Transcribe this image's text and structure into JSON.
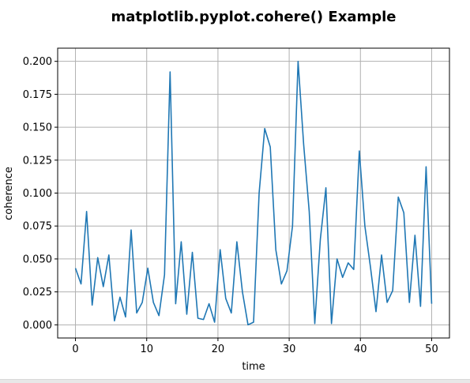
{
  "chart_data": {
    "type": "line",
    "title": "matplotlib.pyplot.cohere() Example",
    "xlabel": "time",
    "ylabel": "coherence",
    "xlim": [
      -2.5,
      52.5
    ],
    "ylim": [
      -0.01,
      0.21
    ],
    "xticks": [
      0,
      10,
      20,
      30,
      40,
      50
    ],
    "yticks": [
      0.0,
      0.025,
      0.05,
      0.075,
      0.1,
      0.125,
      0.15,
      0.175,
      0.2
    ],
    "xtick_labels": [
      "0",
      "10",
      "20",
      "30",
      "40",
      "50"
    ],
    "ytick_labels": [
      "0.000",
      "0.025",
      "0.050",
      "0.075",
      "0.100",
      "0.125",
      "0.150",
      "0.175",
      "0.200"
    ],
    "grid": true,
    "series": [
      {
        "color": "#1f77b4",
        "x": [
          0,
          0.781,
          1.563,
          2.344,
          3.125,
          3.906,
          4.688,
          5.469,
          6.25,
          7.031,
          7.813,
          8.594,
          9.375,
          10.156,
          10.938,
          11.719,
          12.5,
          13.281,
          14.063,
          14.844,
          15.625,
          16.406,
          17.188,
          17.969,
          18.75,
          19.531,
          20.313,
          21.094,
          21.875,
          22.656,
          23.438,
          24.219,
          25.0,
          25.781,
          26.563,
          27.344,
          28.125,
          28.906,
          29.688,
          30.469,
          31.25,
          32.031,
          32.813,
          33.594,
          34.375,
          35.156,
          35.938,
          36.719,
          37.5,
          38.281,
          39.063,
          39.844,
          40.625,
          41.406,
          42.188,
          42.969,
          43.75,
          44.531,
          45.313,
          46.094,
          46.875,
          47.656,
          48.438,
          49.219,
          50.0
        ],
        "y": [
          0.043,
          0.031,
          0.086,
          0.015,
          0.051,
          0.029,
          0.053,
          0.003,
          0.021,
          0.006,
          0.072,
          0.009,
          0.017,
          0.043,
          0.017,
          0.007,
          0.038,
          0.192,
          0.016,
          0.063,
          0.008,
          0.055,
          0.005,
          0.004,
          0.016,
          0.002,
          0.057,
          0.02,
          0.009,
          0.063,
          0.025,
          0.0,
          0.002,
          0.1,
          0.149,
          0.135,
          0.057,
          0.031,
          0.041,
          0.075,
          0.2,
          0.137,
          0.086,
          0.001,
          0.065,
          0.104,
          0.001,
          0.05,
          0.036,
          0.047,
          0.042,
          0.132,
          0.075,
          0.044,
          0.01,
          0.053,
          0.017,
          0.026,
          0.097,
          0.085,
          0.017,
          0.068,
          0.014,
          0.12,
          0.016
        ]
      }
    ]
  }
}
